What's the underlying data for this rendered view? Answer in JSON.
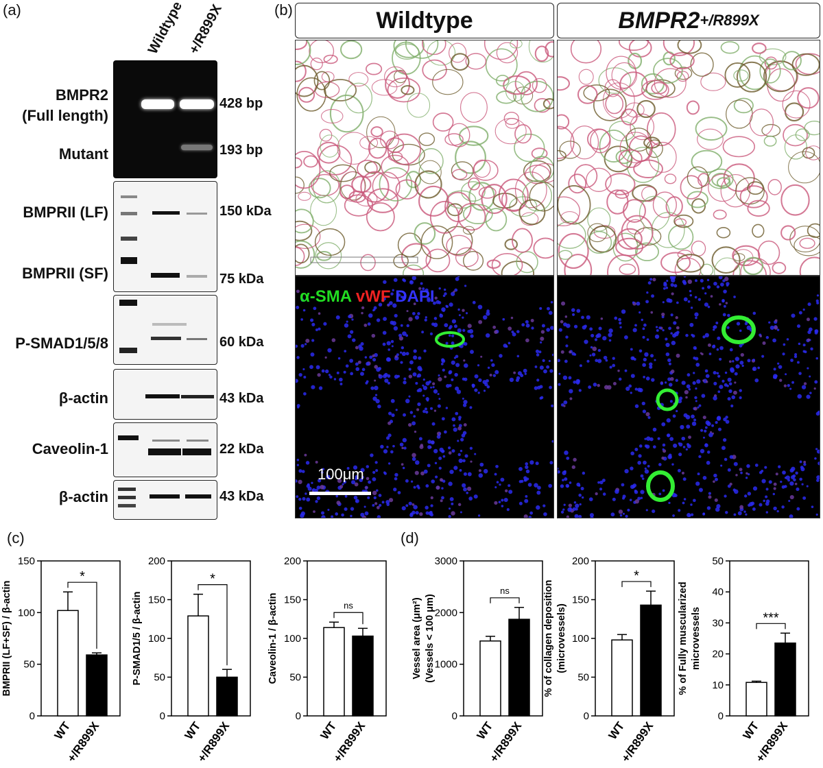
{
  "panel_a": {
    "letter": "(a)",
    "columns": [
      "Wildtype",
      "+/R899X"
    ],
    "rows": [
      {
        "label_lines": [
          "BMPR2",
          "(Full length)"
        ],
        "size": "428 bp"
      },
      {
        "label_lines": [
          "Mutant"
        ],
        "size": "193 bp"
      },
      {
        "label_lines": [
          "BMPRII (LF)"
        ],
        "size": "150 kDa"
      },
      {
        "label_lines": [
          "BMPRII (SF)"
        ],
        "size": "75 kDa"
      },
      {
        "label_lines": [
          "P-SMAD1/5/8"
        ],
        "size": "60 kDa"
      },
      {
        "label_lines": [
          "β-actin"
        ],
        "size": "43 kDa"
      },
      {
        "label_lines": [
          "Caveolin-1"
        ],
        "size": "22 kDa"
      },
      {
        "label_lines": [
          "β-actin"
        ],
        "size": "43 kDa"
      }
    ],
    "colors": {
      "gel_bg": "#0a0a0a",
      "blot_bg": "#f4f4f4"
    }
  },
  "panel_b": {
    "letter": "(b)",
    "headers": {
      "wildtype": "Wildtype",
      "mutant_base": "BMPR2",
      "mutant_sup": "+/R899X"
    },
    "stain_legend": [
      {
        "text": "α-SMA",
        "color": "#22dd22"
      },
      {
        "text": "vWF",
        "color": "#ee2222"
      },
      {
        "text": "DAPI",
        "color": "#3333ff"
      }
    ],
    "scale_bar_label": "100μm"
  },
  "panel_c": {
    "letter": "(c)"
  },
  "panel_d": {
    "letter": "(d)"
  },
  "chart_data": [
    {
      "type": "bar",
      "categories": [
        "WT",
        "+/R899X"
      ],
      "values": [
        102,
        59
      ],
      "errors": [
        18,
        2
      ],
      "ylabel": "BMPRII (LF+SF) / β-actin",
      "ylim": [
        0,
        150
      ],
      "yticks": [
        0,
        50,
        100,
        150
      ],
      "significance": "*"
    },
    {
      "type": "bar",
      "categories": [
        "WT",
        "+/R899X"
      ],
      "values": [
        129,
        50
      ],
      "errors": [
        28,
        10
      ],
      "ylabel": "P-SMAD1/5 / β-actin",
      "ylim": [
        0,
        200
      ],
      "yticks": [
        0,
        50,
        100,
        150,
        200
      ],
      "significance": "*"
    },
    {
      "type": "bar",
      "categories": [
        "WT",
        "+/R899X"
      ],
      "values": [
        114,
        103
      ],
      "errors": [
        7,
        10
      ],
      "ylabel": "Caveolin-1 / β-actin",
      "ylim": [
        0,
        200
      ],
      "yticks": [
        0,
        50,
        100,
        150,
        200
      ],
      "significance": "ns"
    },
    {
      "type": "bar",
      "categories": [
        "WT",
        "+/R899X"
      ],
      "values": [
        1450,
        1870
      ],
      "errors": [
        90,
        230
      ],
      "ylabel_lines": [
        "Vessel area (μm²)",
        "(Vessels < 100 μm)"
      ],
      "ylim": [
        0,
        3000
      ],
      "yticks": [
        0,
        1000,
        2000,
        3000
      ],
      "significance": "ns"
    },
    {
      "type": "bar",
      "categories": [
        "WT",
        "+/R899X"
      ],
      "values": [
        98,
        143
      ],
      "errors": [
        7,
        18
      ],
      "ylabel_lines": [
        "% of collagen deposition",
        "(microvessels)"
      ],
      "ylim": [
        0,
        200
      ],
      "yticks": [
        0,
        50,
        100,
        150,
        200
      ],
      "significance": "*"
    },
    {
      "type": "bar",
      "categories": [
        "WT",
        "+/R899X"
      ],
      "values": [
        10.8,
        23.5
      ],
      "errors": [
        0.4,
        3.2
      ],
      "ylabel_lines": [
        "% of Fully muscularized",
        "microvessels"
      ],
      "ylim": [
        0,
        50
      ],
      "yticks": [
        0,
        10,
        20,
        30,
        40,
        50
      ],
      "significance": "***"
    }
  ]
}
